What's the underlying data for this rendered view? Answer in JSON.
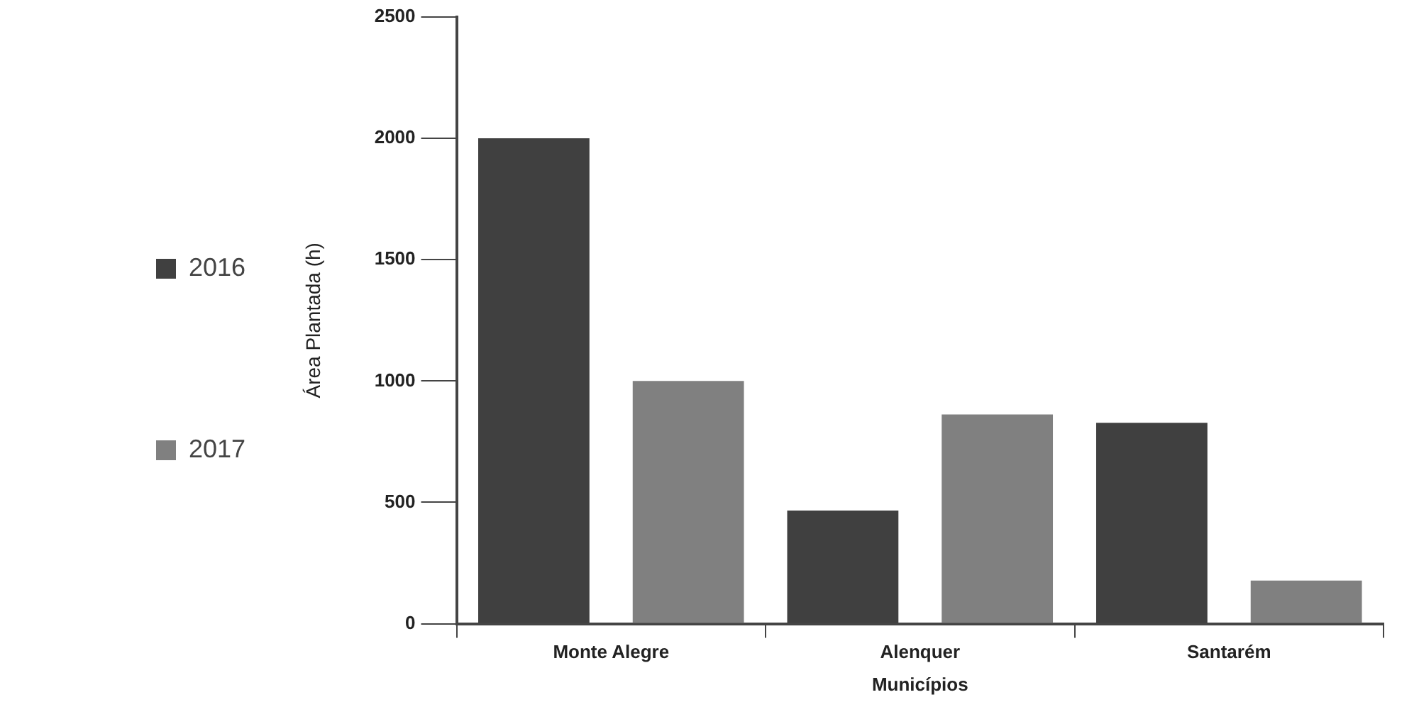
{
  "chart_data": {
    "type": "bar",
    "xlabel": "Municípios",
    "ylabel": "Área Plantada (h)",
    "categories": [
      "Monte Alegre",
      "Alenquer",
      "Santarém"
    ],
    "series": [
      {
        "name": "2016",
        "color": "#404040",
        "values": [
          2000,
          466,
          828
        ]
      },
      {
        "name": "2017",
        "color": "#808080",
        "values": [
          1000,
          862,
          178
        ]
      }
    ],
    "ylim": [
      0,
      2500
    ],
    "yticks": [
      0,
      500,
      1000,
      1500,
      2000,
      2500
    ],
    "grid": false,
    "legend": "left"
  }
}
